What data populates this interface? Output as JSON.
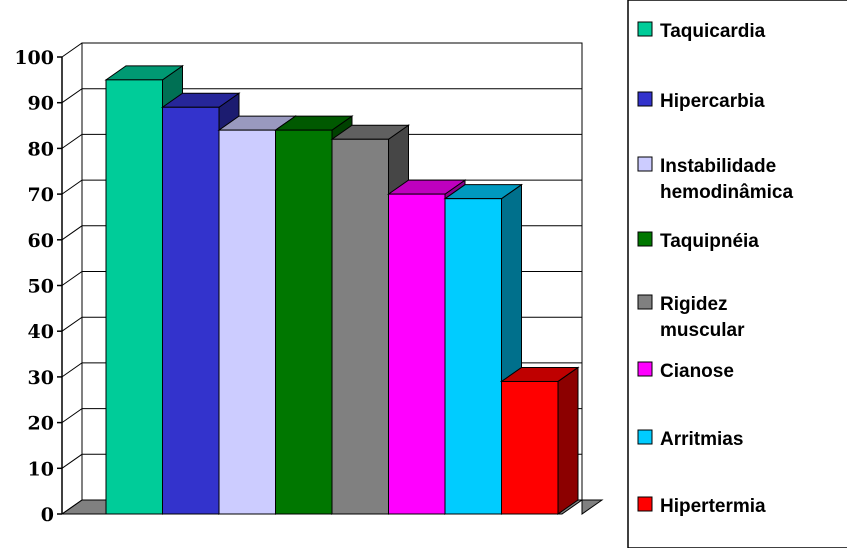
{
  "chart_data": {
    "type": "bar",
    "categories": [
      "Taquicardia",
      "Hipercarbia",
      "Instabilidade hemodinâmica",
      "Taquipnéia",
      "Rigidez muscular",
      "Cianose",
      "Arritmias",
      "Hipertermia"
    ],
    "values": [
      95,
      89,
      84,
      84,
      82,
      70,
      69,
      29
    ],
    "colors": [
      "#00cc99",
      "#3333cc",
      "#ccccff",
      "#007700",
      "#808080",
      "#ff00ff",
      "#00ccff",
      "#ff0000"
    ],
    "ylim": [
      0,
      100
    ],
    "yticks": [
      "0",
      "10",
      "20",
      "30",
      "40",
      "50",
      "60",
      "70",
      "80",
      "90",
      "100"
    ],
    "grid": true,
    "legend_position": "right",
    "legend": [
      [
        "Taquicardia"
      ],
      [
        "Hipercarbia"
      ],
      [
        "Instabilidade",
        "hemodinâmica"
      ],
      [
        "Taquipnéia"
      ],
      [
        "Rigidez",
        "muscular"
      ],
      [
        "Cianose"
      ],
      [
        "Arritmias"
      ],
      [
        "Hipertermia"
      ]
    ]
  }
}
